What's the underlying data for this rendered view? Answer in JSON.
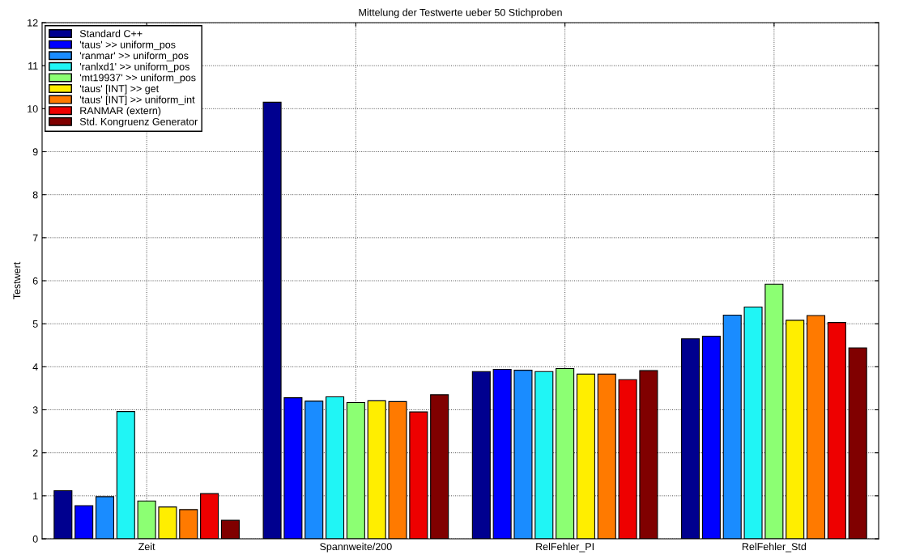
{
  "chart_data": {
    "type": "bar",
    "title": "Mittelung der Testwerte ueber 50 Stichproben",
    "ylabel": "Testwert",
    "categories": [
      "Zeit",
      "Spannweite/200",
      "RelFehler_PI",
      "RelFehler_Std"
    ],
    "series": [
      {
        "name": "Standard C++",
        "color": "#00008f",
        "values": [
          1.12,
          10.15,
          3.89,
          4.65
        ]
      },
      {
        "name": "'taus' >> uniform_pos",
        "color": "#0000ff",
        "values": [
          0.77,
          3.28,
          3.94,
          4.71
        ]
      },
      {
        "name": "'ranmar' >> uniform_pos",
        "color": "#1a8cff",
        "values": [
          0.98,
          3.2,
          3.92,
          5.2
        ]
      },
      {
        "name": "'ranlxd1' >> uniform_pos",
        "color": "#20f5f5",
        "values": [
          2.96,
          3.3,
          3.89,
          5.39
        ]
      },
      {
        "name": "'mt19937' >> uniform_pos",
        "color": "#8cff73",
        "values": [
          0.88,
          3.17,
          3.96,
          5.92
        ]
      },
      {
        "name": "'taus' [INT] >> get",
        "color": "#ffee00",
        "values": [
          0.74,
          3.21,
          3.83,
          5.08
        ]
      },
      {
        "name": "'taus' [INT] >> uniform_int",
        "color": "#ff7a00",
        "values": [
          0.68,
          3.19,
          3.83,
          5.19
        ]
      },
      {
        "name": "RANMAR (extern)",
        "color": "#ee0000",
        "values": [
          1.05,
          2.95,
          3.7,
          5.03
        ]
      },
      {
        "name": "Std. Kongruenz Generator",
        "color": "#800000",
        "values": [
          0.43,
          3.35,
          3.91,
          4.44
        ]
      }
    ],
    "ylim": [
      0,
      12
    ],
    "yticks": [
      0,
      1,
      2,
      3,
      4,
      5,
      6,
      7,
      8,
      9,
      10,
      11,
      12
    ],
    "grid": true,
    "legend": "top left"
  }
}
